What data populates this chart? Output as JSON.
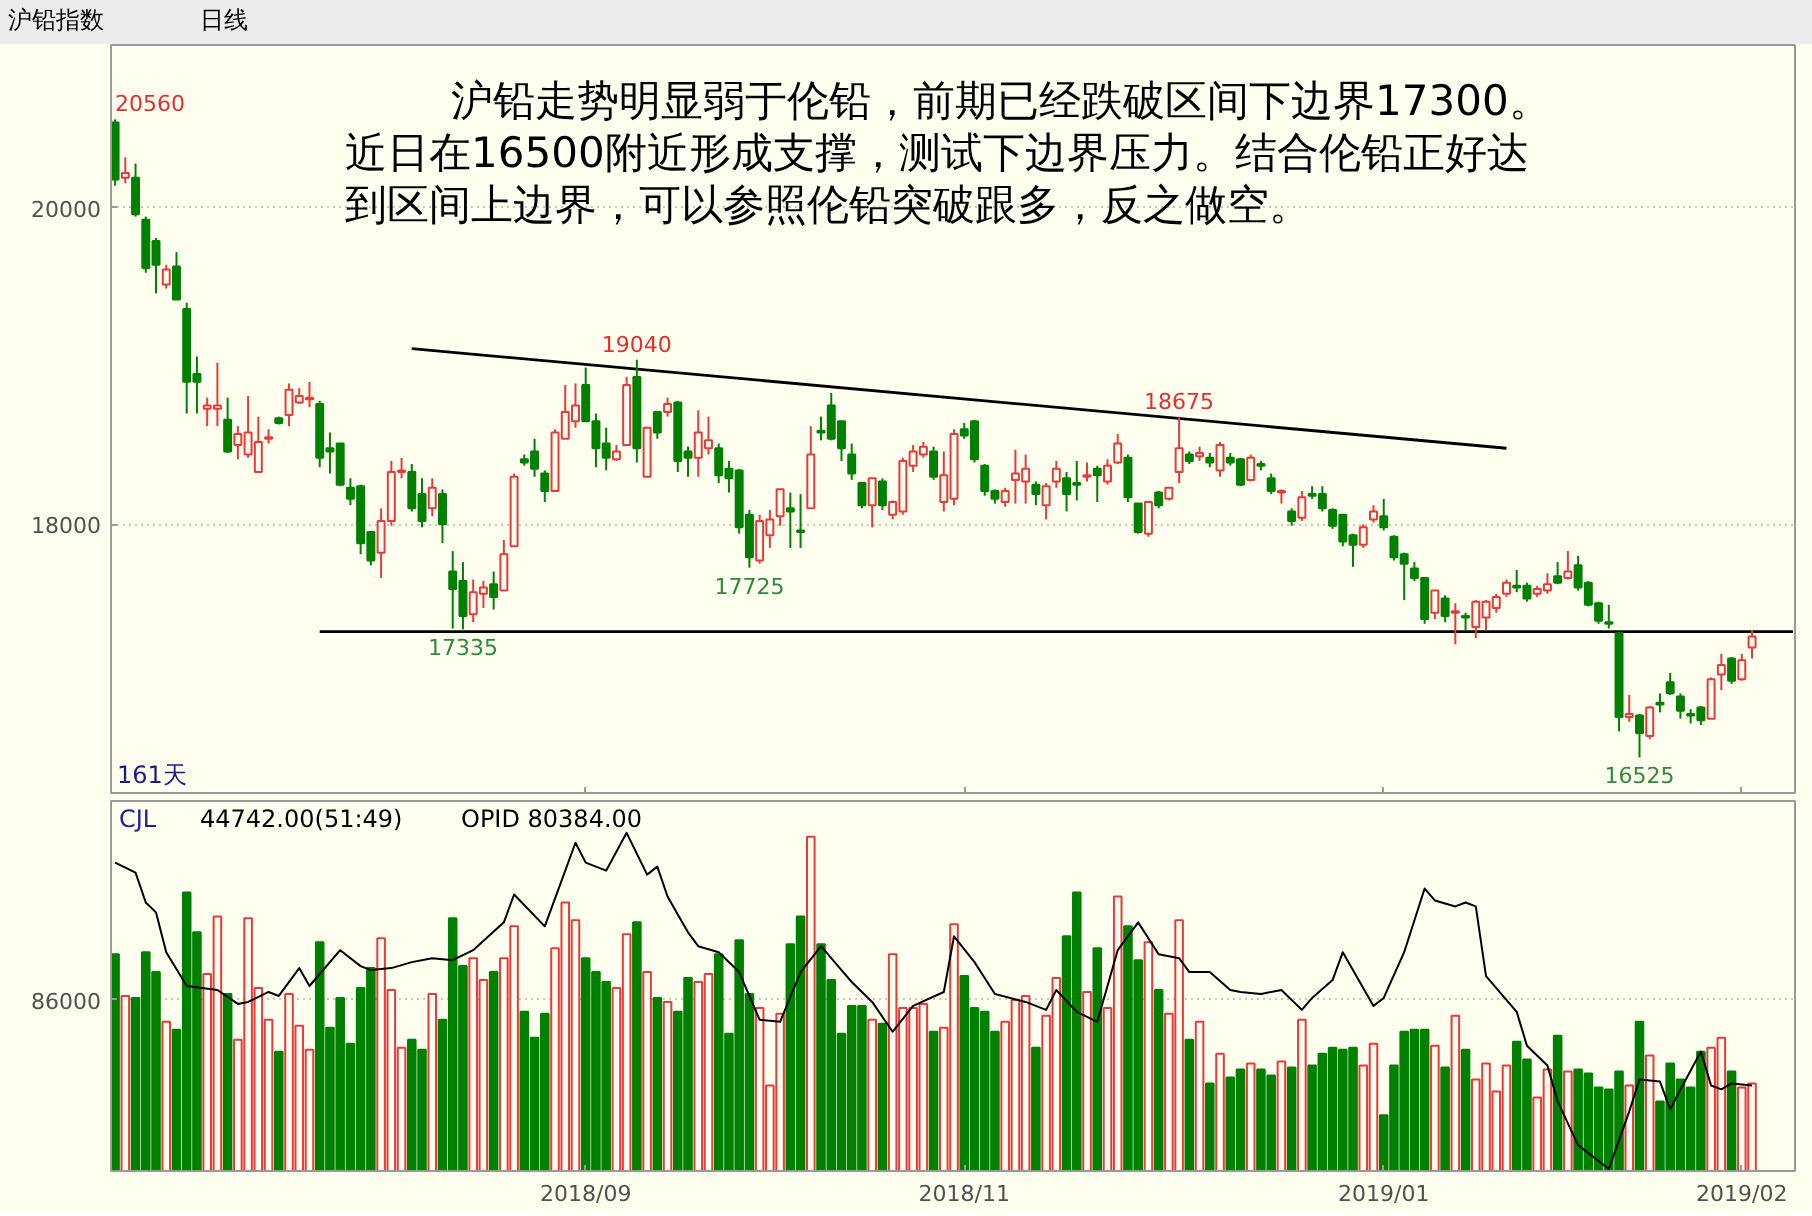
{
  "chart_data": [
    {
      "type": "candlestick",
      "title": "沪铅指数",
      "subtitle": "日线",
      "categories": [
        null,
        null,
        null,
        null,
        null,
        null,
        null,
        null,
        null,
        null,
        null,
        null,
        null,
        null,
        null,
        null,
        null,
        null,
        null,
        null,
        null,
        null,
        null,
        null,
        null,
        null,
        null,
        null,
        null,
        null,
        null,
        null,
        null,
        null,
        null,
        null,
        null,
        null,
        null,
        null,
        null,
        null,
        null,
        null,
        null,
        null,
        "2018/09",
        null,
        null,
        null,
        null,
        null,
        null,
        null,
        null,
        null,
        null,
        null,
        null,
        null,
        null,
        null,
        null,
        null,
        null,
        null,
        null,
        null,
        null,
        null,
        null,
        null,
        null,
        null,
        null,
        null,
        null,
        null,
        null,
        null,
        null,
        null,
        null,
        "2018/11",
        null,
        null,
        null,
        null,
        null,
        null,
        null,
        null,
        null,
        null,
        null,
        null,
        null,
        null,
        null,
        null,
        null,
        null,
        null,
        null,
        null,
        null,
        null,
        null,
        null,
        null,
        null,
        null,
        null,
        null,
        null,
        null,
        null,
        null,
        null,
        null,
        null,
        null,
        null,
        null,
        "2019/01",
        null,
        null,
        null,
        null,
        null,
        null,
        null,
        null,
        null,
        null,
        null,
        null,
        null,
        null,
        null,
        null,
        null,
        null,
        null,
        null,
        null,
        null,
        null,
        null,
        null,
        null,
        null,
        null,
        null,
        null,
        null,
        null,
        null,
        null,
        "2019/02",
        null,
        null,
        null,
        null,
        null
      ],
      "ohlc": [
        [
          20540,
          20560,
          20140,
          20180
        ],
        [
          20190,
          20320,
          20155,
          20220
        ],
        [
          20190,
          20280,
          19945,
          19960
        ],
        [
          19925,
          19945,
          19590,
          19620
        ],
        [
          19790,
          19810,
          19460,
          19640
        ],
        [
          19515,
          19640,
          19490,
          19610
        ],
        [
          19630,
          19720,
          19420,
          19420
        ],
        [
          19360,
          19400,
          18700,
          18900
        ],
        [
          18950,
          19060,
          18700,
          18900
        ],
        [
          18730,
          18800,
          18620,
          18750
        ],
        [
          18730,
          19020,
          18620,
          18750
        ],
        [
          18660,
          18800,
          18450,
          18460
        ],
        [
          18500,
          18620,
          18410,
          18570
        ],
        [
          18440,
          18810,
          18420,
          18580
        ],
        [
          18330,
          18680,
          18330,
          18520
        ],
        [
          18540,
          18600,
          18510,
          18550
        ],
        [
          18670,
          18680,
          18630,
          18640
        ],
        [
          18690,
          18890,
          18620,
          18850
        ],
        [
          18770,
          18860,
          18760,
          18810
        ],
        [
          18790,
          18900,
          18740,
          18800
        ],
        [
          18760,
          18780,
          18360,
          18420
        ],
        [
          18480,
          18580,
          18320,
          18460
        ],
        [
          18510,
          18510,
          18240,
          18250
        ],
        [
          18230,
          18290,
          18120,
          18160
        ],
        [
          18240,
          18250,
          17810,
          17880
        ],
        [
          17950,
          17950,
          17740,
          17770
        ],
        [
          17820,
          18100,
          17660,
          18020
        ],
        [
          18020,
          18400,
          17990,
          18330
        ],
        [
          18330,
          18420,
          18290,
          18340
        ],
        [
          18330,
          18380,
          18080,
          18100
        ],
        [
          18190,
          18290,
          17980,
          18020
        ],
        [
          18100,
          18290,
          18050,
          18230
        ],
        [
          18190,
          18220,
          17880,
          18000
        ],
        [
          17700,
          17830,
          17340,
          17590
        ],
        [
          17640,
          17760,
          17335,
          17420
        ],
        [
          17430,
          17650,
          17380,
          17570
        ],
        [
          17560,
          17640,
          17470,
          17600
        ],
        [
          17620,
          17700,
          17460,
          17540
        ],
        [
          17580,
          17900,
          17580,
          17810
        ],
        [
          17860,
          18320,
          17860,
          18300
        ],
        [
          18410,
          18440,
          18370,
          18390
        ],
        [
          18460,
          18540,
          18300,
          18350
        ],
        [
          18320,
          18340,
          18140,
          18210
        ],
        [
          18210,
          18600,
          18210,
          18580
        ],
        [
          18540,
          18880,
          18540,
          18710
        ],
        [
          18650,
          18890,
          18610,
          18750
        ],
        [
          18880,
          18990,
          18650,
          18650
        ],
        [
          18650,
          18700,
          18360,
          18480
        ],
        [
          18510,
          18610,
          18340,
          18420
        ],
        [
          18410,
          18500,
          18400,
          18460
        ],
        [
          18500,
          18930,
          18500,
          18880
        ],
        [
          18930,
          19040,
          18390,
          18480
        ],
        [
          18300,
          18610,
          18300,
          18610
        ],
        [
          18710,
          18710,
          18540,
          18580
        ],
        [
          18710,
          18800,
          18680,
          18760
        ],
        [
          18770,
          18780,
          18330,
          18400
        ],
        [
          18460,
          18490,
          18300,
          18420
        ],
        [
          18420,
          18720,
          18300,
          18580
        ],
        [
          18480,
          18680,
          18440,
          18530
        ],
        [
          18480,
          18510,
          18260,
          18310
        ],
        [
          18350,
          18400,
          18200,
          18290
        ],
        [
          18340,
          18350,
          17940,
          17980
        ],
        [
          18060,
          18090,
          17725,
          17790
        ],
        [
          17770,
          18060,
          17750,
          18020
        ],
        [
          17930,
          18090,
          17850,
          18030
        ],
        [
          18050,
          18220,
          17990,
          18220
        ],
        [
          18100,
          18200,
          17850,
          18080
        ],
        [
          17960,
          18190,
          17850,
          17950
        ],
        [
          18100,
          18620,
          18100,
          18440
        ],
        [
          18590,
          18680,
          18530,
          18580
        ],
        [
          18750,
          18830,
          18530,
          18540
        ],
        [
          18650,
          18650,
          18400,
          18480
        ],
        [
          18440,
          18510,
          18280,
          18320
        ],
        [
          18260,
          18260,
          18100,
          18120
        ],
        [
          18120,
          18290,
          17980,
          18290
        ],
        [
          18270,
          18290,
          18090,
          18120
        ],
        [
          18060,
          18150,
          18030,
          18140
        ],
        [
          18080,
          18420,
          18060,
          18400
        ],
        [
          18370,
          18500,
          18330,
          18460
        ],
        [
          18440,
          18520,
          18420,
          18490
        ],
        [
          18460,
          18490,
          18280,
          18300
        ],
        [
          18140,
          18460,
          18080,
          18310
        ],
        [
          18160,
          18600,
          18120,
          18570
        ],
        [
          18600,
          18640,
          18540,
          18560
        ],
        [
          18650,
          18660,
          18390,
          18410
        ],
        [
          18370,
          18380,
          18180,
          18210
        ],
        [
          18210,
          18220,
          18130,
          18160
        ],
        [
          18140,
          18230,
          18110,
          18210
        ],
        [
          18280,
          18470,
          18130,
          18320
        ],
        [
          18270,
          18440,
          18130,
          18350
        ],
        [
          18250,
          18270,
          18120,
          18190
        ],
        [
          18120,
          18260,
          18030,
          18240
        ],
        [
          18270,
          18400,
          18230,
          18350
        ],
        [
          18290,
          18330,
          18080,
          18190
        ],
        [
          18260,
          18400,
          18150,
          18250
        ],
        [
          18300,
          18390,
          18270,
          18310
        ],
        [
          18350,
          18370,
          18140,
          18310
        ],
        [
          18270,
          18410,
          18250,
          18370
        ],
        [
          18390,
          18570,
          18380,
          18510
        ],
        [
          18420,
          18440,
          18140,
          18170
        ],
        [
          18130,
          18130,
          17940,
          17950
        ],
        [
          17940,
          18140,
          17920,
          18140
        ],
        [
          18200,
          18210,
          18100,
          18120
        ],
        [
          18160,
          18230,
          18150,
          18230
        ],
        [
          18330,
          18675,
          18260,
          18480
        ],
        [
          18440,
          18460,
          18380,
          18400
        ],
        [
          18430,
          18490,
          18400,
          18450
        ],
        [
          18420,
          18450,
          18360,
          18390
        ],
        [
          18340,
          18520,
          18300,
          18500
        ],
        [
          18420,
          18450,
          18370,
          18390
        ],
        [
          18410,
          18420,
          18240,
          18250
        ],
        [
          18280,
          18440,
          18270,
          18420
        ],
        [
          18380,
          18400,
          18340,
          18370
        ],
        [
          18290,
          18320,
          18190,
          18210
        ],
        [
          18200,
          18220,
          18130,
          18210
        ],
        [
          18080,
          18100,
          17990,
          18020
        ],
        [
          18040,
          18210,
          18020,
          18170
        ],
        [
          18190,
          18240,
          18160,
          18180
        ],
        [
          18190,
          18240,
          18080,
          18100
        ],
        [
          18090,
          18100,
          17970,
          17990
        ],
        [
          18060,
          18060,
          17860,
          17890
        ],
        [
          17930,
          17940,
          17730,
          17870
        ],
        [
          17870,
          18000,
          17850,
          17980
        ],
        [
          18030,
          18120,
          18010,
          18080
        ],
        [
          18050,
          18160,
          17960,
          17980
        ],
        [
          17920,
          17930,
          17770,
          17790
        ],
        [
          17810,
          17820,
          17520,
          17750
        ],
        [
          17720,
          17760,
          17640,
          17660
        ],
        [
          17660,
          17660,
          17370,
          17400
        ],
        [
          17440,
          17580,
          17400,
          17580
        ],
        [
          17530,
          17550,
          17380,
          17420
        ],
        [
          17440,
          17500,
          17240,
          17450
        ],
        [
          17420,
          17440,
          17330,
          17410
        ],
        [
          17350,
          17520,
          17280,
          17510
        ],
        [
          17410,
          17520,
          17330,
          17510
        ],
        [
          17470,
          17560,
          17440,
          17540
        ],
        [
          17560,
          17650,
          17540,
          17630
        ],
        [
          17610,
          17710,
          17570,
          17600
        ],
        [
          17610,
          17630,
          17510,
          17530
        ],
        [
          17560,
          17610,
          17540,
          17590
        ],
        [
          17580,
          17690,
          17560,
          17620
        ],
        [
          17670,
          17760,
          17620,
          17630
        ],
        [
          17660,
          17830,
          17650,
          17700
        ],
        [
          17740,
          17800,
          17580,
          17600
        ],
        [
          17630,
          17640,
          17480,
          17490
        ],
        [
          17500,
          17510,
          17370,
          17390
        ],
        [
          17380,
          17490,
          17340,
          17370
        ],
        [
          17310,
          17320,
          16690,
          16780
        ],
        [
          16780,
          16920,
          16750,
          16800
        ],
        [
          16790,
          16800,
          16525,
          16680
        ],
        [
          16660,
          16850,
          16640,
          16840
        ],
        [
          16870,
          16930,
          16810,
          16860
        ],
        [
          17000,
          17060,
          16920,
          16930
        ],
        [
          16910,
          16930,
          16770,
          16820
        ],
        [
          16800,
          16830,
          16740,
          16790
        ],
        [
          16840,
          16850,
          16730,
          16760
        ],
        [
          16770,
          17030,
          16770,
          17020
        ],
        [
          17050,
          17180,
          16950,
          17110
        ],
        [
          17150,
          17160,
          16990,
          17010
        ],
        [
          17020,
          17180,
          17010,
          17140
        ],
        [
          17220,
          17330,
          17150,
          17290
        ],
        null,
        null,
        null,
        null
      ],
      "colors": [
        "#008000",
        "#e83a3a",
        "#008000",
        "#008000",
        "#008000",
        "#e83a3a",
        "#008000",
        "#008000",
        "#008000",
        "#e83a3a",
        "#e83a3a",
        "#008000",
        "#e83a3a",
        "#e83a3a",
        "#e83a3a",
        "#e83a3a",
        "#008000",
        "#e83a3a",
        "#e83a3a",
        "#e83a3a",
        "#008000",
        "#008000",
        "#008000",
        "#008000",
        "#008000",
        "#008000",
        "#e83a3a",
        "#e83a3a",
        "#e83a3a",
        "#008000",
        "#008000",
        "#e83a3a",
        "#008000",
        "#008000",
        "#008000",
        "#e83a3a",
        "#e83a3a",
        "#008000",
        "#e83a3a",
        "#e83a3a",
        "#008000",
        "#008000",
        "#008000",
        "#e83a3a",
        "#e83a3a",
        "#e83a3a",
        "#008000",
        "#008000",
        "#008000",
        "#e83a3a",
        "#e83a3a",
        "#008000",
        "#e83a3a",
        "#008000",
        "#e83a3a",
        "#008000",
        "#008000",
        "#e83a3a",
        "#e83a3a",
        "#008000",
        "#008000",
        "#008000",
        "#008000",
        "#e83a3a",
        "#e83a3a",
        "#e83a3a",
        "#008000",
        "#008000",
        "#e83a3a",
        "#008000",
        "#008000",
        "#008000",
        "#008000",
        "#008000",
        "#e83a3a",
        "#008000",
        "#e83a3a",
        "#e83a3a",
        "#e83a3a",
        "#e83a3a",
        "#008000",
        "#e83a3a",
        "#e83a3a",
        "#008000",
        "#008000",
        "#008000",
        "#008000",
        "#e83a3a",
        "#e83a3a",
        "#e83a3a",
        "#008000",
        "#e83a3a",
        "#e83a3a",
        "#008000",
        "#008000",
        "#e83a3a",
        "#008000",
        "#e83a3a",
        "#e83a3a",
        "#008000",
        "#008000",
        "#e83a3a",
        "#008000",
        "#e83a3a",
        "#e83a3a",
        "#008000",
        "#e83a3a",
        "#008000",
        "#e83a3a",
        "#008000",
        "#008000",
        "#e83a3a",
        "#008000",
        "#008000",
        "#e83a3a",
        "#008000",
        "#e83a3a",
        "#008000",
        "#008000",
        "#008000",
        "#008000",
        "#008000",
        "#e83a3a",
        "#e83a3a",
        "#008000",
        "#008000",
        "#008000",
        "#008000",
        "#008000",
        "#e83a3a",
        "#008000",
        "#e83a3a",
        "#008000",
        "#e83a3a",
        "#e83a3a",
        "#e83a3a",
        "#e83a3a",
        "#008000",
        "#008000",
        "#e83a3a",
        "#e83a3a",
        "#008000",
        "#e83a3a",
        "#008000",
        "#008000",
        "#008000",
        "#008000",
        "#008000",
        "#e83a3a",
        "#008000",
        "#e83a3a",
        "#008000",
        "#008000",
        "#008000",
        "#008000",
        "#008000",
        "#e83a3a",
        "#e83a3a",
        "#008000",
        "#e83a3a",
        "#e83a3a",
        null,
        null,
        null,
        null
      ],
      "series": [
        {
          "type": "line",
          "color": "#000000",
          "values": [
            null,
            null,
            null,
            null,
            null,
            null,
            null,
            null,
            null,
            null,
            null,
            null,
            null,
            null,
            null,
            null,
            null,
            null,
            null,
            null,
            null,
            null,
            null,
            null,
            null,
            null,
            null,
            null,
            null,
            19110,
            null,
            null,
            null,
            null,
            null,
            null,
            null,
            null,
            null,
            null,
            null,
            null,
            null,
            null,
            null,
            null,
            null,
            null,
            null,
            null,
            null,
            null,
            null,
            null,
            null,
            null,
            null,
            null,
            null,
            null,
            null,
            null,
            null,
            null,
            null,
            null,
            null,
            null,
            null,
            null,
            null,
            null,
            null,
            null,
            null,
            null,
            null,
            null,
            null,
            null,
            null,
            null,
            null,
            null,
            null,
            null,
            null,
            null,
            null,
            null,
            null,
            null,
            null,
            null,
            null,
            null,
            null,
            null,
            null,
            null,
            null,
            null,
            null,
            null,
            null,
            null,
            null,
            null,
            null,
            null,
            null,
            null,
            null,
            null,
            null,
            null,
            null,
            null,
            null,
            null,
            null,
            null,
            null,
            null,
            null,
            null,
            null,
            null,
            null,
            null,
            null,
            null,
            null,
            null,
            null,
            null,
            18480,
            null,
            null,
            null,
            null,
            null,
            null,
            null,
            null,
            null,
            null,
            null,
            null,
            null,
            null,
            null,
            null,
            null,
            null,
            null,
            null,
            null,
            null,
            null,
            null,
            null,
            null,
            null,
            null
          ]
        },
        {
          "type": "line",
          "color": "#000000",
          "values": [
            null,
            null,
            null,
            null,
            null,
            null,
            null,
            null,
            null,
            null,
            null,
            null,
            null,
            null,
            null,
            null,
            null,
            null,
            null,
            null,
            17320,
            null,
            null,
            null,
            null,
            null,
            null,
            null,
            null,
            null,
            null,
            null,
            null,
            null,
            null,
            null,
            null,
            null,
            null,
            null,
            null,
            null,
            null,
            null,
            null,
            null,
            null,
            null,
            null,
            null,
            null,
            null,
            null,
            null,
            null,
            null,
            null,
            null,
            null,
            null,
            null,
            null,
            null,
            null,
            null,
            null,
            null,
            null,
            null,
            null,
            null,
            null,
            null,
            null,
            null,
            null,
            null,
            null,
            null,
            null,
            null,
            null,
            null,
            null,
            null,
            null,
            null,
            null,
            null,
            null,
            null,
            null,
            null,
            null,
            null,
            null,
            null,
            null,
            null,
            null,
            null,
            null,
            null,
            null,
            null,
            null,
            null,
            null,
            null,
            null,
            null,
            null,
            null,
            null,
            null,
            null,
            null,
            null,
            null,
            null,
            null,
            null,
            null,
            null,
            null,
            null,
            null,
            null,
            null,
            null,
            null,
            null,
            null,
            null,
            null,
            null,
            null,
            null,
            null,
            null,
            null,
            null,
            null,
            null,
            null,
            null,
            null,
            null,
            null,
            null,
            null,
            null,
            null,
            null,
            null,
            null,
            null,
            null,
            null,
            null,
            null,
            null,
            null,
            null,
            17320
          ]
        }
      ],
      "ylim": [
        16300,
        21030
      ],
      "yticks": [
        18000,
        20000
      ],
      "tick_labels": "y",
      "grid": "y",
      "annotations": [
        "沪铅走势明显弱于伦铅，前期已经跌破区间下边界17300。",
        "近日在16500附近形成支撑，测试下边界压力。结合伦铅正好达",
        "到区间上边界，可以参照伦铅突破跟多，反之做空。",
        "161天",
        "20560",
        "19040",
        "18675",
        "17335",
        "17725",
        "16525"
      ]
    },
    {
      "type": "bar",
      "categories": [
        null,
        null,
        null,
        null,
        null,
        null,
        null,
        null,
        null,
        null,
        null,
        null,
        null,
        null,
        null,
        null,
        null,
        null,
        null,
        null,
        null,
        null,
        null,
        null,
        null,
        null,
        null,
        null,
        null,
        null,
        null,
        null,
        null,
        null,
        null,
        null,
        null,
        null,
        null,
        null,
        null,
        null,
        null,
        null,
        null,
        null,
        "2018/09",
        null,
        null,
        null,
        null,
        null,
        null,
        null,
        null,
        null,
        null,
        null,
        null,
        null,
        null,
        null,
        null,
        null,
        null,
        null,
        null,
        null,
        null,
        null,
        null,
        null,
        null,
        null,
        null,
        null,
        null,
        null,
        null,
        null,
        null,
        null,
        null,
        "2018/11",
        null,
        null,
        null,
        null,
        null,
        null,
        null,
        null,
        null,
        null,
        null,
        null,
        null,
        null,
        null,
        null,
        null,
        null,
        null,
        null,
        null,
        null,
        null,
        null,
        null,
        null,
        null,
        null,
        null,
        null,
        null,
        null,
        null,
        null,
        null,
        null,
        null,
        null,
        null,
        null,
        "2019/01",
        null,
        null,
        null,
        null,
        null,
        null,
        null,
        null,
        null,
        null,
        null,
        null,
        null,
        null,
        null,
        null,
        null,
        null,
        null,
        null,
        null,
        null,
        null,
        null,
        null,
        null,
        null,
        null,
        null,
        null,
        null,
        null,
        null,
        null,
        "2019/02",
        null,
        null,
        null,
        null,
        null
      ],
      "ylim": [
        0,
        186000
      ],
      "yticks": [
        86000
      ],
      "grid": "y",
      "series": [
        {
          "type": "bar",
          "values": [
            109000,
            88000,
            87000,
            110000,
            100000,
            75000,
            71000,
            140000,
            120000,
            99000,
            128000,
            89000,
            66000,
            127000,
            92000,
            76000,
            60000,
            89000,
            73000,
            61000,
            115000,
            72000,
            87000,
            64000,
            92000,
            102000,
            117000,
            91000,
            62000,
            66000,
            61000,
            89000,
            76000,
            127000,
            103000,
            107000,
            96000,
            100000,
            107000,
            123000,
            80000,
            67000,
            79000,
            112000,
            135000,
            126000,
            107000,
            100000,
            95000,
            92000,
            119000,
            125000,
            100000,
            87000,
            85000,
            80000,
            97000,
            95000,
            99000,
            109000,
            69000,
            116000,
            89000,
            82000,
            43000,
            79000,
            114000,
            128000,
            168000,
            114000,
            96000,
            69000,
            83000,
            83000,
            76000,
            74000,
            109000,
            82000,
            82000,
            84000,
            70000,
            72000,
            124000,
            98000,
            82000,
            80000,
            70000,
            75000,
            86000,
            88000,
            62000,
            78000,
            97000,
            118000,
            140000,
            90000,
            112000,
            82000,
            138000,
            123000,
            106000,
            115000,
            91000,
            79000,
            126000,
            66000,
            75000,
            44000,
            59000,
            47000,
            51000,
            54000,
            51000,
            48000,
            55000,
            52000,
            76000,
            53000,
            59000,
            62000,
            61000,
            62000,
            53000,
            64000,
            28000,
            53000,
            70000,
            71000,
            71000,
            63000,
            52000,
            78000,
            61000,
            46000,
            54000,
            40000,
            53000,
            65000,
            56000,
            37000,
            51000,
            68000,
            50000,
            51000,
            49000,
            42000,
            41000,
            50000,
            43000,
            75000,
            58000,
            35000,
            54000,
            46000,
            42000,
            60000,
            62000,
            67000,
            50000,
            42000,
            44000,
            null,
            null,
            null,
            null
          ],
          "colors": [
            "#008000",
            "#e83a3a",
            "#008000",
            "#008000",
            "#008000",
            "#e83a3a",
            "#008000",
            "#008000",
            "#008000",
            "#e83a3a",
            "#e83a3a",
            "#008000",
            "#e83a3a",
            "#e83a3a",
            "#e83a3a",
            "#e83a3a",
            "#008000",
            "#e83a3a",
            "#e83a3a",
            "#e83a3a",
            "#008000",
            "#008000",
            "#008000",
            "#008000",
            "#008000",
            "#008000",
            "#e83a3a",
            "#e83a3a",
            "#e83a3a",
            "#008000",
            "#008000",
            "#e83a3a",
            "#008000",
            "#008000",
            "#008000",
            "#e83a3a",
            "#e83a3a",
            "#008000",
            "#e83a3a",
            "#e83a3a",
            "#008000",
            "#008000",
            "#008000",
            "#e83a3a",
            "#e83a3a",
            "#e83a3a",
            "#008000",
            "#008000",
            "#008000",
            "#e83a3a",
            "#e83a3a",
            "#008000",
            "#e83a3a",
            "#008000",
            "#e83a3a",
            "#008000",
            "#008000",
            "#e83a3a",
            "#e83a3a",
            "#008000",
            "#008000",
            "#008000",
            "#008000",
            "#e83a3a",
            "#e83a3a",
            "#e83a3a",
            "#008000",
            "#008000",
            "#e83a3a",
            "#008000",
            "#008000",
            "#008000",
            "#008000",
            "#008000",
            "#e83a3a",
            "#008000",
            "#e83a3a",
            "#e83a3a",
            "#e83a3a",
            "#e83a3a",
            "#008000",
            "#e83a3a",
            "#e83a3a",
            "#008000",
            "#008000",
            "#008000",
            "#008000",
            "#e83a3a",
            "#e83a3a",
            "#e83a3a",
            "#008000",
            "#e83a3a",
            "#e83a3a",
            "#008000",
            "#008000",
            "#e83a3a",
            "#008000",
            "#e83a3a",
            "#e83a3a",
            "#008000",
            "#008000",
            "#e83a3a",
            "#008000",
            "#e83a3a",
            "#e83a3a",
            "#008000",
            "#e83a3a",
            "#008000",
            "#e83a3a",
            "#008000",
            "#008000",
            "#e83a3a",
            "#008000",
            "#008000",
            "#e83a3a",
            "#008000",
            "#e83a3a",
            "#008000",
            "#008000",
            "#008000",
            "#008000",
            "#008000",
            "#e83a3a",
            "#e83a3a",
            "#008000",
            "#008000",
            "#008000",
            "#008000",
            "#008000",
            "#e83a3a",
            "#008000",
            "#e83a3a",
            "#008000",
            "#e83a3a",
            "#e83a3a",
            "#e83a3a",
            "#e83a3a",
            "#008000",
            "#008000",
            "#e83a3a",
            "#e83a3a",
            "#008000",
            "#e83a3a",
            "#008000",
            "#008000",
            "#008000",
            "#008000",
            "#008000",
            "#e83a3a",
            "#008000",
            "#e83a3a",
            "#008000",
            "#008000",
            "#008000",
            "#008000",
            "#008000",
            "#e83a3a",
            "#e83a3a",
            "#008000",
            "#e83a3a",
            "#e83a3a",
            null,
            null,
            null,
            null
          ]
        },
        {
          "type": "line",
          "color": "#000000",
          "values": [
            155000,
            null,
            150000,
            135000,
            130000,
            110000,
            null,
            93000,
            null,
            null,
            91000,
            null,
            84000,
            85000,
            null,
            90000,
            88000,
            null,
            102000,
            93000,
            null,
            null,
            111000,
            null,
            103000,
            101000,
            null,
            102000,
            null,
            105000,
            null,
            107000,
            null,
            106000,
            null,
            111000,
            null,
            null,
            125000,
            139000,
            null,
            null,
            123000,
            null,
            151000,
            165000,
            155000,
            null,
            151000,
            null,
            170000,
            null,
            149000,
            153000,
            138000,
            129000,
            120000,
            113000,
            null,
            110000,
            null,
            100000,
            null,
            76000,
            null,
            75000,
            null,
            100000,
            null,
            113000,
            null,
            101000,
            95000,
            null,
            85000,
            null,
            70000,
            null,
            83000,
            null,
            null,
            90000,
            118000,
            null,
            105000,
            null,
            89000,
            null,
            null,
            85000,
            null,
            81000,
            91000,
            null,
            80000,
            null,
            75000,
            null,
            111000,
            null,
            125000,
            null,
            109000,
            null,
            107000,
            100000,
            null,
            100000,
            null,
            91000,
            90000,
            null,
            89000,
            null,
            91000,
            null,
            81000,
            87000,
            null,
            96000,
            110000,
            null,
            null,
            83000,
            87000,
            null,
            110000,
            null,
            142000,
            136000,
            null,
            133000,
            135000,
            133000,
            98000,
            null,
            null,
            80000,
            63000,
            null,
            53000,
            35000,
            null,
            13000,
            null,
            null,
            1000,
            null,
            30000,
            46000,
            null,
            45000,
            31000,
            41000,
            null,
            60000,
            43000,
            41000,
            44000,
            null,
            43000,
            null,
            null,
            null,
            null
          ]
        }
      ],
      "annotations": [
        "CJL",
        "44742.00(51:49)",
        "OPID 80384.00"
      ]
    }
  ]
}
